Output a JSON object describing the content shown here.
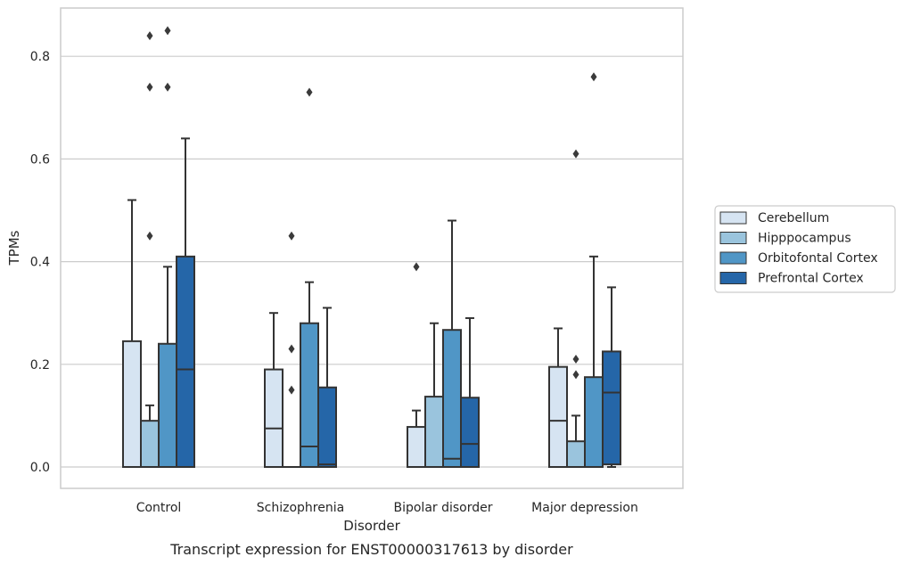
{
  "chart_data": {
    "type": "box",
    "caption": "Transcript expression for ENST00000317613 by disorder",
    "xlabel": "Disorder",
    "ylabel": "TPMs",
    "ylim": [
      -0.04,
      0.9
    ],
    "yticks": [
      "0.0",
      "0.2",
      "0.4",
      "0.6",
      "0.8"
    ],
    "grid": "horizontal",
    "legend_position": "right",
    "categories": [
      "Control",
      "Schizophrenia",
      "Bipolar disorder",
      "Major depression"
    ],
    "series": [
      {
        "name": "Cerebellum",
        "color": "#d6e4f2",
        "boxes": [
          {
            "q1": 0.0,
            "median": 0.0,
            "q3": 0.245,
            "whisker_low": 0.0,
            "whisker_high": 0.52,
            "outliers": []
          },
          {
            "q1": 0.0,
            "median": 0.075,
            "q3": 0.19,
            "whisker_low": 0.0,
            "whisker_high": 0.3,
            "outliers": []
          },
          {
            "q1": 0.0,
            "median": 0.0,
            "q3": 0.078,
            "whisker_low": 0.0,
            "whisker_high": 0.11,
            "outliers": [
              0.39
            ]
          },
          {
            "q1": 0.0,
            "median": 0.09,
            "q3": 0.195,
            "whisker_low": 0.0,
            "whisker_high": 0.27,
            "outliers": []
          }
        ]
      },
      {
        "name": "Hipppocampus",
        "color": "#9ac4dd",
        "boxes": [
          {
            "q1": 0.0,
            "median": 0.0,
            "q3": 0.09,
            "whisker_low": 0.0,
            "whisker_high": 0.12,
            "outliers": [
              0.45,
              0.74,
              0.84
            ]
          },
          {
            "q1": 0.0,
            "median": 0.0,
            "q3": 0.0,
            "whisker_low": 0.0,
            "whisker_high": 0.0,
            "outliers": [
              0.15,
              0.23,
              0.45
            ]
          },
          {
            "q1": 0.0,
            "median": 0.0,
            "q3": 0.137,
            "whisker_low": 0.0,
            "whisker_high": 0.28,
            "outliers": []
          },
          {
            "q1": 0.0,
            "median": 0.0,
            "q3": 0.05,
            "whisker_low": 0.0,
            "whisker_high": 0.1,
            "outliers": [
              0.18,
              0.21,
              0.61
            ]
          }
        ]
      },
      {
        "name": "Orbitofontal Cortex",
        "color": "#5096c6",
        "boxes": [
          {
            "q1": 0.0,
            "median": 0.0,
            "q3": 0.24,
            "whisker_low": 0.0,
            "whisker_high": 0.39,
            "outliers": [
              0.74,
              0.85
            ]
          },
          {
            "q1": 0.0,
            "median": 0.04,
            "q3": 0.28,
            "whisker_low": 0.0,
            "whisker_high": 0.36,
            "outliers": [
              0.73
            ]
          },
          {
            "q1": 0.0,
            "median": 0.016,
            "q3": 0.267,
            "whisker_low": 0.0,
            "whisker_high": 0.48,
            "outliers": []
          },
          {
            "q1": 0.0,
            "median": 0.0,
            "q3": 0.175,
            "whisker_low": 0.0,
            "whisker_high": 0.41,
            "outliers": [
              0.76
            ]
          }
        ]
      },
      {
        "name": "Prefrontal Cortex",
        "color": "#2566a8",
        "boxes": [
          {
            "q1": 0.0,
            "median": 0.19,
            "q3": 0.41,
            "whisker_low": 0.0,
            "whisker_high": 0.64,
            "outliers": []
          },
          {
            "q1": 0.0,
            "median": 0.005,
            "q3": 0.155,
            "whisker_low": 0.0,
            "whisker_high": 0.31,
            "outliers": []
          },
          {
            "q1": 0.0,
            "median": 0.045,
            "q3": 0.135,
            "whisker_low": 0.0,
            "whisker_high": 0.29,
            "outliers": []
          },
          {
            "q1": 0.005,
            "median": 0.145,
            "q3": 0.225,
            "whisker_low": 0.0,
            "whisker_high": 0.35,
            "outliers": []
          }
        ]
      }
    ]
  }
}
